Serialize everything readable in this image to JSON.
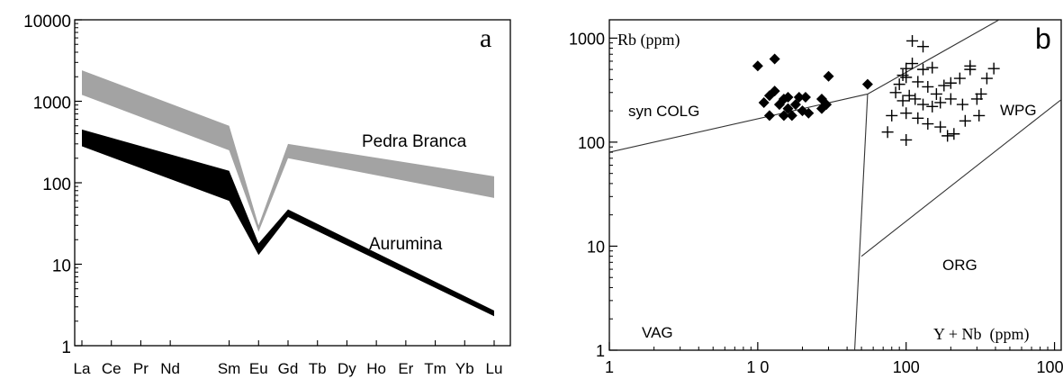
{
  "chart_data": [
    {
      "panel": "a",
      "type": "area",
      "title": "",
      "xlabel": "",
      "ylabel": "",
      "y_scale": "log",
      "ylim": [
        1,
        10000
      ],
      "y_ticks": [
        "1",
        "10",
        "100",
        "1000",
        "10000"
      ],
      "categories": [
        "La",
        "Ce",
        "Pr",
        "Nd",
        "Sm",
        "Eu",
        "Gd",
        "Tb",
        "Dy",
        "Ho",
        "Er",
        "Tm",
        "Yb",
        "Lu"
      ],
      "category_positions": {
        "La": 0,
        "Ce": 1,
        "Pr": 2,
        "Nd": 3,
        "Sm": 5,
        "Eu": 6,
        "Gd": 7,
        "Tb": 8,
        "Dy": 9,
        "Ho": 10,
        "Er": 11,
        "Tm": 12,
        "Yb": 13,
        "Lu": 14
      },
      "series": [
        {
          "name": "Pedra Branca",
          "color": "#a3a3a3",
          "upper": [
            {
              "x": "La",
              "y": 2400
            },
            {
              "x": "Sm",
              "y": 500
            },
            {
              "x": "Eu",
              "y": 30
            },
            {
              "x": "Gd",
              "y": 300
            },
            {
              "x": "Lu",
              "y": 120
            }
          ],
          "lower": [
            {
              "x": "La",
              "y": 1200
            },
            {
              "x": "Sm",
              "y": 250
            },
            {
              "x": "Eu",
              "y": 25
            },
            {
              "x": "Gd",
              "y": 200
            },
            {
              "x": "Lu",
              "y": 65
            }
          ]
        },
        {
          "name": "Aurumina",
          "color": "#000000",
          "upper": [
            {
              "x": "La",
              "y": 450
            },
            {
              "x": "Sm",
              "y": 140
            },
            {
              "x": "Eu",
              "y": 18
            },
            {
              "x": "Gd",
              "y": 47
            },
            {
              "x": "Lu",
              "y": 2.7
            }
          ],
          "lower": [
            {
              "x": "La",
              "y": 280
            },
            {
              "x": "Sm",
              "y": 60
            },
            {
              "x": "Eu",
              "y": 13
            },
            {
              "x": "Gd",
              "y": 38
            },
            {
              "x": "Lu",
              "y": 2.3
            }
          ]
        }
      ],
      "labels": {
        "panel_letter": "a",
        "pedra_branca": "Pedra Branca",
        "aurumina": "Aurumina"
      }
    },
    {
      "panel": "b",
      "type": "scatter",
      "title": "",
      "xlabel": "Y + Nb  (ppm)",
      "ylabel": "Rb (ppm)",
      "x_scale": "log",
      "y_scale": "log",
      "xlim": [
        1,
        1000
      ],
      "ylim": [
        1,
        1500
      ],
      "x_ticks": [
        "1",
        "1 0",
        "100",
        "1000"
      ],
      "y_ticks": [
        "1",
        "10",
        "100",
        "1000"
      ],
      "boundaries": [
        [
          [
            1,
            80
          ],
          [
            55,
            290
          ]
        ],
        [
          [
            55,
            290
          ],
          [
            1000,
            3000
          ]
        ],
        [
          [
            55,
            290
          ],
          [
            45,
            1
          ]
        ],
        [
          [
            50,
            8
          ],
          [
            1200,
            280
          ]
        ]
      ],
      "fields": [
        "syn COLG",
        "WPG",
        "VAG",
        "ORG"
      ],
      "series": [
        {
          "name": "",
          "marker": "diamond",
          "points": [
            [
              10,
              540
            ],
            [
              13,
              630
            ],
            [
              11,
              240
            ],
            [
              12,
              280
            ],
            [
              12,
              180
            ],
            [
              13,
              310
            ],
            [
              14,
              230
            ],
            [
              15,
              260
            ],
            [
              15,
              180
            ],
            [
              16,
              270
            ],
            [
              16,
              210
            ],
            [
              17,
              180
            ],
            [
              18,
              230
            ],
            [
              19,
              270
            ],
            [
              20,
              200
            ],
            [
              21,
              270
            ],
            [
              22,
              190
            ],
            [
              27,
              260
            ],
            [
              27,
              210
            ],
            [
              29,
              230
            ],
            [
              30,
              430
            ],
            [
              55,
              360
            ]
          ]
        },
        {
          "name": "",
          "marker": "plus",
          "points": [
            [
              110,
              940
            ],
            [
              130,
              830
            ],
            [
              100,
              510
            ],
            [
              110,
              570
            ],
            [
              130,
              500
            ],
            [
              150,
              520
            ],
            [
              100,
              420
            ],
            [
              120,
              380
            ],
            [
              140,
              340
            ],
            [
              160,
              290
            ],
            [
              180,
              350
            ],
            [
              200,
              370
            ],
            [
              230,
              410
            ],
            [
              270,
              500
            ],
            [
              270,
              540
            ],
            [
              320,
              290
            ],
            [
              350,
              410
            ],
            [
              390,
              510
            ],
            [
              85,
              300
            ],
            [
              95,
              250
            ],
            [
              105,
              280
            ],
            [
              115,
              260
            ],
            [
              130,
              230
            ],
            [
              150,
              220
            ],
            [
              170,
              240
            ],
            [
              200,
              260
            ],
            [
              240,
              230
            ],
            [
              300,
              260
            ],
            [
              80,
              180
            ],
            [
              100,
              190
            ],
            [
              120,
              170
            ],
            [
              140,
              150
            ],
            [
              170,
              140
            ],
            [
              210,
              120
            ],
            [
              250,
              160
            ],
            [
              310,
              180
            ],
            [
              75,
              125
            ],
            [
              100,
              105
            ],
            [
              190,
              115
            ],
            [
              90,
              360
            ],
            [
              95,
              440
            ]
          ]
        }
      ],
      "labels": {
        "panel_letter": "b",
        "syn_colg": "syn COLG",
        "wpg": "WPG",
        "vag": "VAG",
        "org": "ORG"
      }
    }
  ]
}
